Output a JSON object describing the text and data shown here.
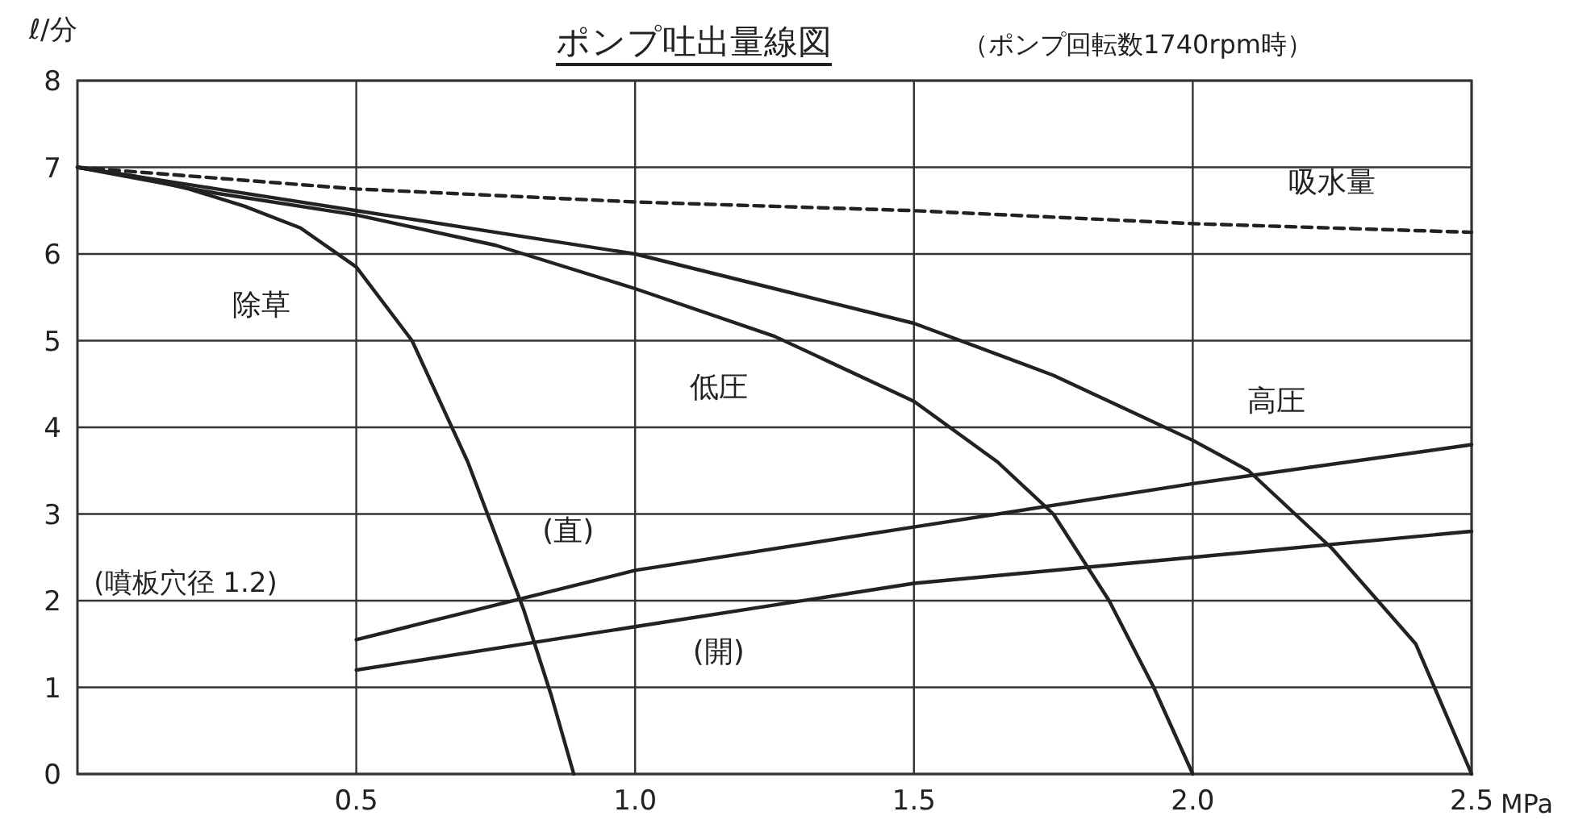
{
  "chart_data": {
    "type": "line",
    "title": "ポンプ吐出量線図",
    "subtitle": "（ポンプ回転数1740rpm時）",
    "xlabel": "MPa",
    "ylabel": "ℓ/分",
    "xlim": [
      0,
      2.5
    ],
    "ylim": [
      0,
      8
    ],
    "xticks": [
      0.5,
      {
        "value": 1,
        "label": "1.0"
      },
      1.5,
      {
        "value": 2,
        "label": "2.0"
      },
      2.5
    ],
    "yticks": [
      0,
      1,
      2,
      3,
      4,
      5,
      6,
      7,
      8
    ],
    "grid": true,
    "legend": false,
    "marker": "none",
    "annotations": [
      "(噴板穴径 1.2)"
    ],
    "series": [
      {
        "name": "除草",
        "color": "#222222",
        "line_style": "solid",
        "x": [
          0,
          0.1,
          0.2,
          0.3,
          0.4,
          0.5,
          0.6,
          0.7,
          0.8,
          0.85,
          0.89
        ],
        "values": [
          7,
          6.9,
          6.75,
          6.55,
          6.3,
          5.85,
          5.0,
          3.6,
          1.9,
          0.9,
          0
        ]
      },
      {
        "name": "低圧",
        "color": "#222222",
        "line_style": "solid",
        "x": [
          0,
          0.25,
          0.5,
          0.75,
          1.0,
          1.25,
          1.5,
          1.65,
          1.75,
          1.85,
          1.93,
          2.0
        ],
        "values": [
          7,
          6.7,
          6.45,
          6.1,
          5.6,
          5.05,
          4.3,
          3.6,
          3.0,
          2.0,
          1.0,
          0
        ]
      },
      {
        "name": "高圧",
        "color": "#222222",
        "line_style": "solid",
        "x": [
          0,
          0.25,
          0.5,
          0.75,
          1.0,
          1.25,
          1.5,
          1.75,
          2.0,
          2.1,
          2.25,
          2.4,
          2.5
        ],
        "values": [
          7,
          6.75,
          6.5,
          6.25,
          6.0,
          5.6,
          5.2,
          4.6,
          3.85,
          3.5,
          2.6,
          1.5,
          0
        ]
      },
      {
        "name": "吸水量",
        "color": "#222222",
        "line_style": "dashed",
        "x": [
          0,
          0.5,
          1.0,
          1.5,
          2.0,
          2.5
        ],
        "values": [
          7,
          6.75,
          6.6,
          6.5,
          6.35,
          6.25
        ]
      },
      {
        "name": "(直)",
        "color": "#222222",
        "line_style": "solid",
        "x": [
          0.5,
          1.0,
          1.5,
          2.0,
          2.5
        ],
        "values": [
          1.55,
          2.35,
          2.85,
          3.35,
          3.8
        ]
      },
      {
        "name": "(開)",
        "color": "#222222",
        "line_style": "solid",
        "x": [
          0.5,
          1.0,
          1.5,
          2.0,
          2.5
        ],
        "values": [
          1.2,
          1.7,
          2.2,
          2.5,
          2.8
        ]
      }
    ]
  }
}
